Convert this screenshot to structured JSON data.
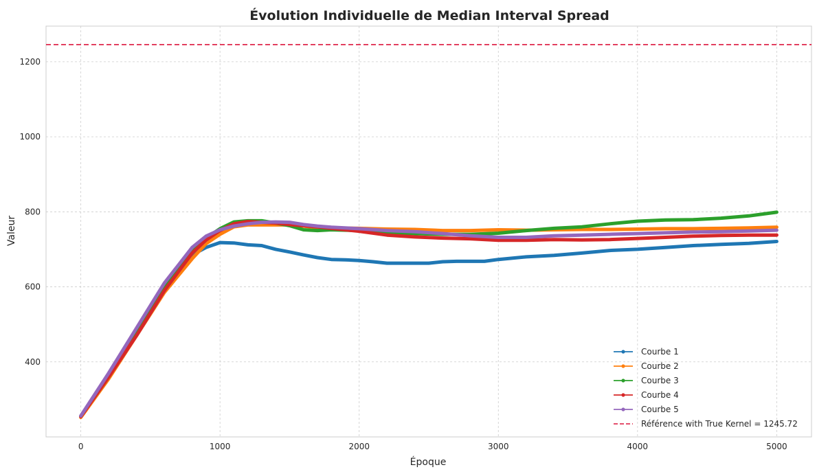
{
  "chart_data": {
    "type": "line",
    "title": "Évolution Individuelle de Median Interval Spread",
    "xlabel": "Époque",
    "ylabel": "Valeur",
    "xlim": [
      -250,
      5250
    ],
    "ylim": [
      200,
      1295
    ],
    "xticks": [
      0,
      1000,
      2000,
      3000,
      4000,
      5000
    ],
    "yticks": [
      400,
      600,
      800,
      1000,
      1200
    ],
    "grid": true,
    "legend_position": "lower-right",
    "series": [
      {
        "name": "Courbe 1",
        "color": "#1f77b4",
        "points": [
          [
            0,
            255
          ],
          [
            200,
            365
          ],
          [
            400,
            485
          ],
          [
            600,
            600
          ],
          [
            800,
            685
          ],
          [
            900,
            705
          ],
          [
            1000,
            718
          ],
          [
            1100,
            717
          ],
          [
            1200,
            712
          ],
          [
            1300,
            710
          ],
          [
            1400,
            700
          ],
          [
            1500,
            693
          ],
          [
            1600,
            685
          ],
          [
            1700,
            678
          ],
          [
            1800,
            673
          ],
          [
            1900,
            672
          ],
          [
            2000,
            670
          ],
          [
            2100,
            667
          ],
          [
            2200,
            663
          ],
          [
            2500,
            663
          ],
          [
            2600,
            667
          ],
          [
            2700,
            668
          ],
          [
            2900,
            668
          ],
          [
            3000,
            673
          ],
          [
            3200,
            680
          ],
          [
            3400,
            684
          ],
          [
            3600,
            690
          ],
          [
            3800,
            697
          ],
          [
            4000,
            700
          ],
          [
            4200,
            705
          ],
          [
            4400,
            710
          ],
          [
            4600,
            713
          ],
          [
            4800,
            716
          ],
          [
            5000,
            721
          ]
        ]
      },
      {
        "name": "Courbe 2",
        "color": "#ff7f0e",
        "points": [
          [
            0,
            252
          ],
          [
            200,
            355
          ],
          [
            400,
            470
          ],
          [
            600,
            585
          ],
          [
            800,
            675
          ],
          [
            900,
            715
          ],
          [
            1000,
            740
          ],
          [
            1100,
            760
          ],
          [
            1200,
            765
          ],
          [
            1300,
            765
          ],
          [
            1400,
            765
          ],
          [
            1500,
            765
          ],
          [
            1600,
            762
          ],
          [
            1700,
            758
          ],
          [
            1800,
            757
          ],
          [
            2000,
            756
          ],
          [
            2200,
            754
          ],
          [
            2400,
            753
          ],
          [
            2600,
            750
          ],
          [
            2800,
            750
          ],
          [
            3000,
            752
          ],
          [
            3200,
            751
          ],
          [
            3400,
            752
          ],
          [
            3600,
            753
          ],
          [
            3800,
            753
          ],
          [
            4000,
            754
          ],
          [
            4200,
            755
          ],
          [
            4400,
            755
          ],
          [
            4600,
            756
          ],
          [
            4800,
            757
          ],
          [
            5000,
            759
          ]
        ]
      },
      {
        "name": "Courbe 3",
        "color": "#2ca02c",
        "points": [
          [
            0,
            255
          ],
          [
            200,
            360
          ],
          [
            400,
            475
          ],
          [
            600,
            595
          ],
          [
            800,
            695
          ],
          [
            900,
            730
          ],
          [
            1000,
            755
          ],
          [
            1100,
            773
          ],
          [
            1200,
            776
          ],
          [
            1300,
            776
          ],
          [
            1400,
            770
          ],
          [
            1500,
            763
          ],
          [
            1600,
            752
          ],
          [
            1700,
            750
          ],
          [
            1800,
            752
          ],
          [
            2000,
            750
          ],
          [
            2200,
            745
          ],
          [
            2400,
            742
          ],
          [
            2600,
            740
          ],
          [
            2800,
            740
          ],
          [
            3000,
            743
          ],
          [
            3200,
            750
          ],
          [
            3400,
            756
          ],
          [
            3600,
            760
          ],
          [
            3800,
            768
          ],
          [
            4000,
            775
          ],
          [
            4200,
            778
          ],
          [
            4400,
            779
          ],
          [
            4600,
            783
          ],
          [
            4800,
            789
          ],
          [
            5000,
            799
          ]
        ]
      },
      {
        "name": "Courbe 4",
        "color": "#d62728",
        "points": [
          [
            0,
            254
          ],
          [
            200,
            360
          ],
          [
            400,
            470
          ],
          [
            600,
            590
          ],
          [
            800,
            690
          ],
          [
            900,
            725
          ],
          [
            1000,
            750
          ],
          [
            1100,
            768
          ],
          [
            1200,
            774
          ],
          [
            1300,
            772
          ],
          [
            1400,
            770
          ],
          [
            1500,
            766
          ],
          [
            1600,
            763
          ],
          [
            1700,
            760
          ],
          [
            1800,
            756
          ],
          [
            2000,
            748
          ],
          [
            2200,
            738
          ],
          [
            2400,
            733
          ],
          [
            2600,
            730
          ],
          [
            2800,
            728
          ],
          [
            3000,
            724
          ],
          [
            3200,
            724
          ],
          [
            3400,
            726
          ],
          [
            3600,
            725
          ],
          [
            3800,
            726
          ],
          [
            4000,
            729
          ],
          [
            4200,
            732
          ],
          [
            4400,
            735
          ],
          [
            4600,
            737
          ],
          [
            4800,
            738
          ],
          [
            5000,
            738
          ]
        ]
      },
      {
        "name": "Courbe 5",
        "color": "#9467bd",
        "points": [
          [
            0,
            256
          ],
          [
            200,
            370
          ],
          [
            400,
            490
          ],
          [
            600,
            610
          ],
          [
            800,
            705
          ],
          [
            900,
            735
          ],
          [
            1000,
            752
          ],
          [
            1100,
            762
          ],
          [
            1200,
            768
          ],
          [
            1300,
            772
          ],
          [
            1400,
            773
          ],
          [
            1500,
            772
          ],
          [
            1600,
            766
          ],
          [
            1700,
            762
          ],
          [
            1800,
            759
          ],
          [
            2000,
            755
          ],
          [
            2200,
            750
          ],
          [
            2400,
            747
          ],
          [
            2600,
            742
          ],
          [
            2800,
            736
          ],
          [
            3000,
            732
          ],
          [
            3200,
            732
          ],
          [
            3400,
            736
          ],
          [
            3600,
            738
          ],
          [
            3800,
            740
          ],
          [
            4000,
            742
          ],
          [
            4200,
            744
          ],
          [
            4400,
            746
          ],
          [
            4600,
            747
          ],
          [
            4800,
            749
          ],
          [
            5000,
            751
          ]
        ]
      }
    ],
    "reference": {
      "label": "Référence with True Kernel = 1245.72",
      "value": 1245.72,
      "color": "#dc143c"
    }
  }
}
